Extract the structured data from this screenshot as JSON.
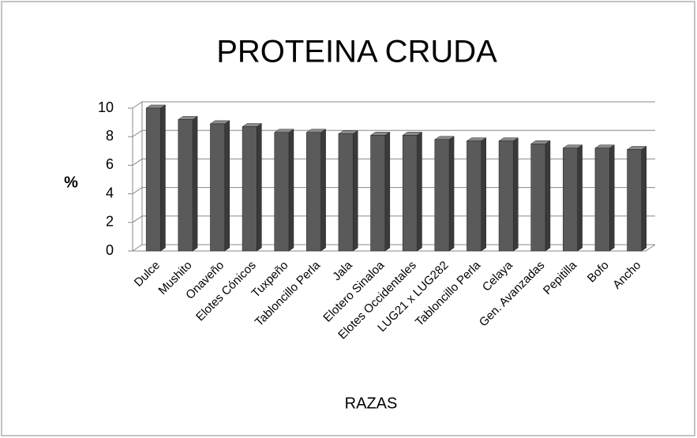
{
  "chart_data": {
    "type": "bar",
    "title": "PROTEINA CRUDA",
    "y_label": "%",
    "x_label": "RAZAS",
    "categories": [
      "Dulce",
      "Mushito",
      "Onaveño",
      "Elotes Cónicos",
      "Tuxpeño",
      "Tabloncillo Perla",
      "Jala",
      "Elotero Sinaloa",
      "Elotes Occidentales",
      "LUG21 x LUG282",
      "Tabloncillo Perla",
      "Celaya",
      "Gen. Avanzadas",
      "Pepitilla",
      "Bofo",
      "Ancho"
    ],
    "values": [
      10.0,
      9.2,
      8.9,
      8.7,
      8.3,
      8.3,
      8.2,
      8.1,
      8.1,
      7.8,
      7.7,
      7.7,
      7.5,
      7.2,
      7.2,
      7.1
    ],
    "color": "#5a5a5a",
    "ylim": [
      0,
      10
    ],
    "yticks": [
      0,
      2,
      4,
      6,
      8,
      10
    ],
    "grid": true
  }
}
